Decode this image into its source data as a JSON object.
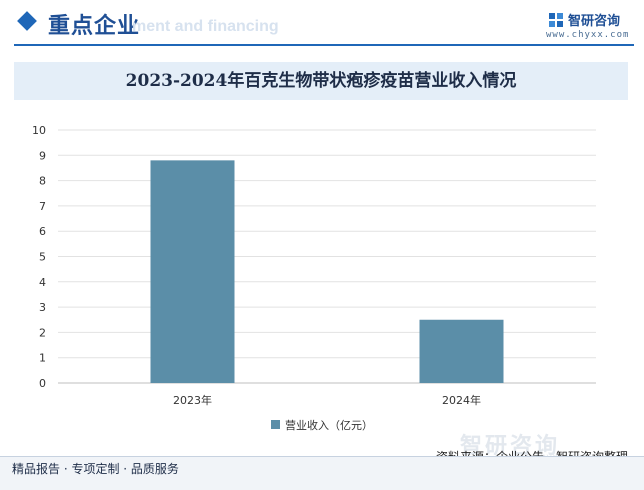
{
  "header": {
    "section_title": "重点企业",
    "faint_subtitle": "ment and financing",
    "brand": {
      "name": "智研咨询",
      "url": "www.chyxx.com",
      "logo_icon": "chyxx-logo-icon"
    },
    "accent_color": "#1f67b8"
  },
  "chart_data": {
    "type": "bar",
    "title": "2023-2024年百克生物带状疱疹疫苗营业收入情况",
    "categories": [
      "2023年",
      "2024年"
    ],
    "series": [
      {
        "name": "营业收入（亿元）",
        "values": [
          8.8,
          2.5
        ],
        "color": "#5b8ea8"
      }
    ],
    "ylim": [
      0,
      10
    ],
    "yticks": [
      0,
      1,
      2,
      3,
      4,
      5,
      6,
      7,
      8,
      9,
      10
    ],
    "grid": true,
    "legend_position": "bottom"
  },
  "footer": {
    "source": "资料来源：企业公告、智研咨询整理",
    "tagline": "精品报告 · 专项定制 · 品质服务"
  },
  "watermark": {
    "text": "智研咨询",
    "url": "www.chyxx.com"
  }
}
